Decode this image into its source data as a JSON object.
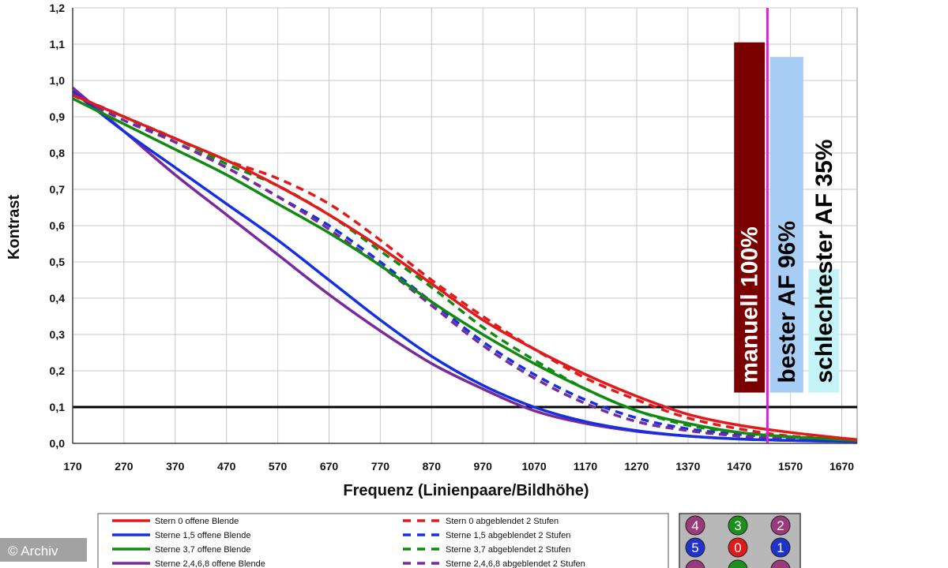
{
  "chart_data": {
    "type": "line",
    "xlabel": "Frequenz (Linienpaare/Bildhöhe)",
    "ylabel": "Kontrast",
    "xlim": [
      170,
      1700
    ],
    "ylim": [
      0,
      1.2
    ],
    "x_ticks": [
      "170",
      "270",
      "370",
      "470",
      "570",
      "670",
      "770",
      "870",
      "970",
      "1070",
      "1170",
      "1270",
      "1370",
      "1470",
      "1570",
      "1670"
    ],
    "y_ticks": [
      "0,0",
      "0,1",
      "0,2",
      "0,3",
      "0,4",
      "0,5",
      "0,6",
      "0,7",
      "0,8",
      "0,9",
      "1,0",
      "1,1",
      "1,2"
    ],
    "grid": true,
    "threshold_line": {
      "y": 0.1,
      "color": "#000000"
    },
    "vertical_marker": {
      "x": 1525,
      "color": "#e020e0"
    },
    "series": [
      {
        "name": "Stern 0 offene Blende",
        "color": "#e31a1c",
        "dash": false,
        "points": [
          [
            170,
            0.96
          ],
          [
            270,
            0.9
          ],
          [
            370,
            0.84
          ],
          [
            470,
            0.78
          ],
          [
            570,
            0.71
          ],
          [
            670,
            0.63
          ],
          [
            770,
            0.54
          ],
          [
            870,
            0.44
          ],
          [
            970,
            0.34
          ],
          [
            1070,
            0.26
          ],
          [
            1170,
            0.19
          ],
          [
            1270,
            0.13
          ],
          [
            1370,
            0.08
          ],
          [
            1470,
            0.05
          ],
          [
            1570,
            0.03
          ],
          [
            1700,
            0.01
          ]
        ]
      },
      {
        "name": "Sterne 1,5 offene Blende",
        "color": "#1530e0",
        "dash": false,
        "points": [
          [
            170,
            0.97
          ],
          [
            270,
            0.86
          ],
          [
            370,
            0.76
          ],
          [
            470,
            0.66
          ],
          [
            570,
            0.56
          ],
          [
            670,
            0.45
          ],
          [
            770,
            0.34
          ],
          [
            870,
            0.24
          ],
          [
            970,
            0.16
          ],
          [
            1070,
            0.1
          ],
          [
            1170,
            0.06
          ],
          [
            1270,
            0.035
          ],
          [
            1370,
            0.02
          ],
          [
            1470,
            0.012
          ],
          [
            1570,
            0.008
          ],
          [
            1700,
            0.005
          ]
        ]
      },
      {
        "name": "Sterne 3,7 offene Blende",
        "color": "#128a12",
        "dash": false,
        "points": [
          [
            170,
            0.95
          ],
          [
            270,
            0.88
          ],
          [
            370,
            0.81
          ],
          [
            470,
            0.74
          ],
          [
            570,
            0.66
          ],
          [
            670,
            0.58
          ],
          [
            770,
            0.49
          ],
          [
            870,
            0.39
          ],
          [
            970,
            0.3
          ],
          [
            1070,
            0.22
          ],
          [
            1170,
            0.15
          ],
          [
            1270,
            0.09
          ],
          [
            1370,
            0.055
          ],
          [
            1470,
            0.03
          ],
          [
            1570,
            0.018
          ],
          [
            1700,
            0.008
          ]
        ]
      },
      {
        "name": "Sterne 2,4,6,8 offene Blende",
        "color": "#7a2a9a",
        "dash": false,
        "points": [
          [
            170,
            0.98
          ],
          [
            270,
            0.86
          ],
          [
            370,
            0.74
          ],
          [
            470,
            0.63
          ],
          [
            570,
            0.52
          ],
          [
            670,
            0.41
          ],
          [
            770,
            0.31
          ],
          [
            870,
            0.22
          ],
          [
            970,
            0.15
          ],
          [
            1070,
            0.09
          ],
          [
            1170,
            0.055
          ],
          [
            1270,
            0.033
          ],
          [
            1370,
            0.02
          ],
          [
            1470,
            0.012
          ],
          [
            1570,
            0.008
          ],
          [
            1700,
            0.005
          ]
        ]
      },
      {
        "name": "Stern 0 abgeblendet 2 Stufen",
        "color": "#e31a1c",
        "dash": true,
        "points": [
          [
            170,
            0.96
          ],
          [
            270,
            0.9
          ],
          [
            370,
            0.84
          ],
          [
            470,
            0.78
          ],
          [
            570,
            0.73
          ],
          [
            670,
            0.66
          ],
          [
            770,
            0.56
          ],
          [
            870,
            0.45
          ],
          [
            970,
            0.35
          ],
          [
            1070,
            0.26
          ],
          [
            1170,
            0.18
          ],
          [
            1270,
            0.12
          ],
          [
            1370,
            0.07
          ],
          [
            1470,
            0.04
          ],
          [
            1570,
            0.02
          ],
          [
            1700,
            0.01
          ]
        ]
      },
      {
        "name": "Sterne 1,5 abgeblendet 2 Stufen",
        "color": "#1530e0",
        "dash": true,
        "points": [
          [
            170,
            0.96
          ],
          [
            270,
            0.9
          ],
          [
            370,
            0.83
          ],
          [
            470,
            0.76
          ],
          [
            570,
            0.68
          ],
          [
            670,
            0.6
          ],
          [
            770,
            0.5
          ],
          [
            870,
            0.39
          ],
          [
            970,
            0.28
          ],
          [
            1070,
            0.19
          ],
          [
            1170,
            0.12
          ],
          [
            1270,
            0.07
          ],
          [
            1370,
            0.04
          ],
          [
            1470,
            0.025
          ],
          [
            1570,
            0.015
          ],
          [
            1700,
            0.008
          ]
        ]
      },
      {
        "name": "Sterne 3,7 abgeblendet 2 Stufen",
        "color": "#128a12",
        "dash": true,
        "points": [
          [
            170,
            0.96
          ],
          [
            270,
            0.9
          ],
          [
            370,
            0.84
          ],
          [
            470,
            0.77
          ],
          [
            570,
            0.71
          ],
          [
            670,
            0.63
          ],
          [
            770,
            0.53
          ],
          [
            870,
            0.43
          ],
          [
            970,
            0.32
          ],
          [
            1070,
            0.23
          ],
          [
            1170,
            0.15
          ],
          [
            1270,
            0.09
          ],
          [
            1370,
            0.05
          ],
          [
            1470,
            0.03
          ],
          [
            1570,
            0.018
          ],
          [
            1700,
            0.008
          ]
        ]
      },
      {
        "name": "Sterne 2,4,6,8 abgeblendet 2 Stufen",
        "color": "#7a2a9a",
        "dash": true,
        "points": [
          [
            170,
            0.96
          ],
          [
            270,
            0.89
          ],
          [
            370,
            0.83
          ],
          [
            470,
            0.76
          ],
          [
            570,
            0.68
          ],
          [
            670,
            0.59
          ],
          [
            770,
            0.49
          ],
          [
            870,
            0.38
          ],
          [
            970,
            0.27
          ],
          [
            1070,
            0.18
          ],
          [
            1170,
            0.11
          ],
          [
            1270,
            0.06
          ],
          [
            1370,
            0.035
          ],
          [
            1470,
            0.02
          ],
          [
            1570,
            0.012
          ],
          [
            1700,
            0.006
          ]
        ]
      }
    ],
    "bars": [
      {
        "label": "manuell 100%",
        "x_start": 1460,
        "x_end": 1520,
        "top": 1.105,
        "bottom": 0.14,
        "color": "#7b0000",
        "text_color": "#ffffff"
      },
      {
        "label": "bester AF 96%",
        "x_start": 1530,
        "x_end": 1595,
        "top": 1.065,
        "bottom": 0.14,
        "color": "#a8cdf5",
        "text_color": "#000000"
      },
      {
        "label": "schlechtester AF 35%",
        "x_start": 1605,
        "x_end": 1665,
        "top": 0.48,
        "bottom": 0.14,
        "color": "#c4f3f8",
        "text_color": "#000000"
      }
    ],
    "legend_placement": "bottom"
  },
  "markers": {
    "rows": [
      [
        {
          "label": "4",
          "color": "#9a3a7a"
        },
        {
          "label": "3",
          "color": "#1c8f1c"
        },
        {
          "label": "2",
          "color": "#9a3a7a"
        }
      ],
      [
        {
          "label": "5",
          "color": "#2233cc"
        },
        {
          "label": "0",
          "color": "#e01a1a"
        },
        {
          "label": "1",
          "color": "#2233cc"
        }
      ],
      [
        {
          "label": "",
          "color": "#9a3a7a"
        },
        {
          "label": "",
          "color": "#1c8f1c"
        },
        {
          "label": "",
          "color": "#9a3a7a"
        }
      ]
    ]
  },
  "copyright": "© Archiv"
}
